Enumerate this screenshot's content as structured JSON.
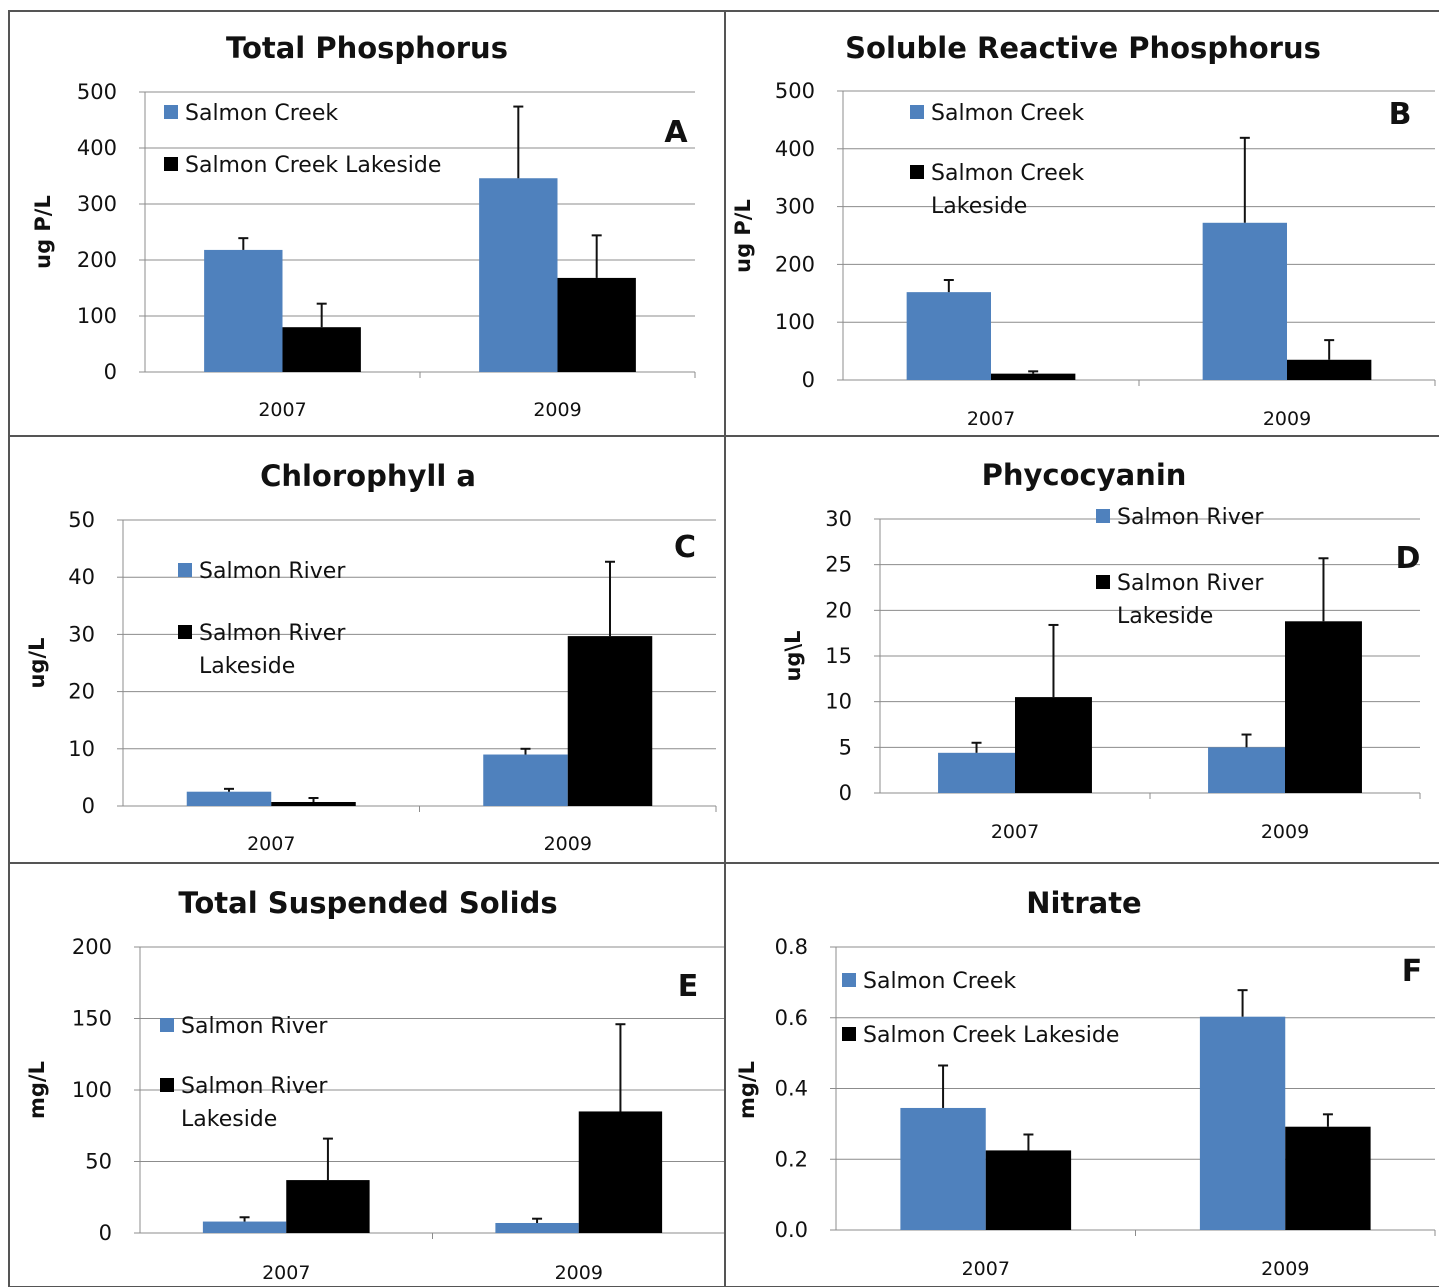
{
  "colors": {
    "series1": "#4f81bd",
    "series2": "#000000"
  },
  "chart_data": [
    {
      "type": "bar",
      "panel": "A",
      "title": "Total Phosphorus",
      "ylabel": "ug P/L",
      "xlabel": "",
      "categories": [
        "2007",
        "2009"
      ],
      "ylim": [
        0,
        500
      ],
      "yticks": [
        "0",
        "100",
        "200",
        "300",
        "400",
        "500"
      ],
      "grid": true,
      "legend_position": "top-left",
      "series": [
        {
          "name": "Salmon Creek",
          "values": [
            218,
            346
          ],
          "errors": [
            21,
            128
          ]
        },
        {
          "name": "Salmon Creek Lakeside",
          "values": [
            80,
            168
          ],
          "errors": [
            42,
            76
          ]
        }
      ]
    },
    {
      "type": "bar",
      "panel": "B",
      "title": "Soluble Reactive Phosphorus",
      "ylabel": "ug P/L",
      "xlabel": "",
      "categories": [
        "2007",
        "2009"
      ],
      "ylim": [
        0,
        500
      ],
      "yticks": [
        "0",
        "100",
        "200",
        "300",
        "400",
        "500"
      ],
      "grid": true,
      "legend_position": "top-left",
      "series": [
        {
          "name": "Salmon Creek",
          "values": [
            152,
            272
          ],
          "errors": [
            21,
            147
          ]
        },
        {
          "name": "Salmon Creek Lakeside",
          "values": [
            11,
            35
          ],
          "errors": [
            4,
            34
          ]
        }
      ]
    },
    {
      "type": "bar",
      "panel": "C",
      "title": "Chlorophyll a",
      "ylabel": "ug/L",
      "xlabel": "",
      "categories": [
        "2007",
        "2009"
      ],
      "ylim": [
        0,
        50
      ],
      "yticks": [
        "0",
        "10",
        "20",
        "30",
        "40",
        "50"
      ],
      "grid": true,
      "legend_position": "top-left",
      "series": [
        {
          "name": "Salmon River",
          "values": [
            2.5,
            9.0
          ],
          "errors": [
            0.5,
            1.0
          ]
        },
        {
          "name": "Salmon River Lakeside",
          "values": [
            0.7,
            29.7
          ],
          "errors": [
            0.7,
            13.0
          ]
        }
      ]
    },
    {
      "type": "bar",
      "panel": "D",
      "title": "Phycocyanin",
      "ylabel": "ug\\L",
      "xlabel": "",
      "categories": [
        "2007",
        "2009"
      ],
      "ylim": [
        0,
        30
      ],
      "yticks": [
        "0",
        "5",
        "10",
        "15",
        "20",
        "25",
        "30"
      ],
      "grid": true,
      "legend_position": "top-right",
      "series": [
        {
          "name": "Salmon River",
          "values": [
            4.4,
            5.0
          ],
          "errors": [
            1.1,
            1.4
          ]
        },
        {
          "name": "Salmon River Lakeside",
          "values": [
            10.5,
            18.8
          ],
          "errors": [
            7.9,
            6.9
          ]
        }
      ]
    },
    {
      "type": "bar",
      "panel": "E",
      "title": "Total Suspended Solids",
      "ylabel": "mg/L",
      "xlabel": "",
      "categories": [
        "2007",
        "2009"
      ],
      "ylim": [
        0,
        200
      ],
      "yticks": [
        "0",
        "50",
        "100",
        "150",
        "200"
      ],
      "grid": true,
      "legend_position": "top-left",
      "series": [
        {
          "name": "Salmon River",
          "values": [
            8,
            7
          ],
          "errors": [
            3,
            3
          ]
        },
        {
          "name": "Salmon River Lakeside",
          "values": [
            37,
            85
          ],
          "errors": [
            29,
            61
          ]
        }
      ]
    },
    {
      "type": "bar",
      "panel": "F",
      "title": "Nitrate",
      "ylabel": "mg/L",
      "xlabel": "",
      "categories": [
        "2007",
        "2009"
      ],
      "ylim": [
        0,
        0.8
      ],
      "yticks": [
        "0.0",
        "0.2",
        "0.4",
        "0.6",
        "0.8"
      ],
      "grid": true,
      "legend_position": "top-left",
      "series": [
        {
          "name": "Salmon Creek",
          "values": [
            0.345,
            0.603
          ],
          "errors": [
            0.12,
            0.075
          ]
        },
        {
          "name": "Salmon Creek Lakeside",
          "values": [
            0.225,
            0.292
          ],
          "errors": [
            0.045,
            0.035
          ]
        }
      ]
    }
  ]
}
